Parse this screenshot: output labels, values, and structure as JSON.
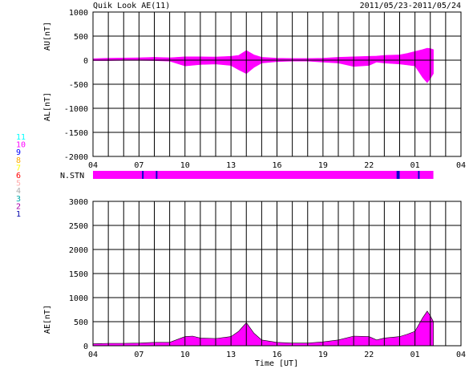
{
  "chart_data": [
    {
      "type": "area",
      "title": "Quik Look AE(11)",
      "date_range": "2011/05/23-2011/05/24",
      "ylabel_upper": "AU[nT]",
      "ylabel_lower": "AL[nT]",
      "ylim": [
        -2000,
        1000
      ],
      "yticks": [
        1000,
        500,
        0,
        -500,
        -1000,
        -1500,
        -2000
      ],
      "xlim": [
        4,
        28
      ],
      "xticks": [
        "04",
        "07",
        "10",
        "13",
        "16",
        "19",
        "22",
        "01",
        "04"
      ],
      "grid": true,
      "series": [
        {
          "name": "AU",
          "x": [
            4,
            5,
            6,
            7,
            8,
            9,
            10,
            11,
            12,
            13,
            13.5,
            14,
            14.5,
            15,
            16,
            17,
            18,
            19,
            20,
            21,
            22,
            22.5,
            23,
            24,
            24.5,
            25,
            25.5,
            25.8,
            26,
            26.2
          ],
          "values": [
            30,
            40,
            45,
            50,
            60,
            50,
            70,
            70,
            65,
            80,
            100,
            200,
            110,
            60,
            40,
            35,
            35,
            40,
            60,
            70,
            80,
            85,
            100,
            110,
            140,
            180,
            220,
            250,
            240,
            220
          ]
        },
        {
          "name": "AL",
          "x": [
            4,
            5,
            6,
            7,
            8,
            9,
            10,
            11,
            12,
            13,
            13.5,
            14,
            14.5,
            15,
            16,
            17,
            18,
            19,
            20,
            21,
            22,
            22.5,
            23,
            24,
            24.5,
            25,
            25.5,
            25.8,
            26,
            26.2
          ],
          "values": [
            -10,
            -10,
            -5,
            -5,
            -10,
            -20,
            -120,
            -90,
            -80,
            -110,
            -200,
            -280,
            -150,
            -60,
            -30,
            -20,
            -20,
            -40,
            -60,
            -130,
            -110,
            -40,
            -60,
            -80,
            -100,
            -120,
            -360,
            -470,
            -380,
            -280
          ]
        }
      ]
    },
    {
      "type": "bar",
      "label": "N.STN",
      "xlim": [
        4,
        28
      ],
      "color": "#ff00ff",
      "segments": [
        {
          "start": 4,
          "end": 26.2,
          "value": 10
        },
        {
          "start": 7.2,
          "end": 7.3,
          "value": 9
        },
        {
          "start": 8.1,
          "end": 8.2,
          "value": 9
        },
        {
          "start": 23.8,
          "end": 24.0,
          "value": 9
        },
        {
          "start": 25.2,
          "end": 25.3,
          "value": 9
        }
      ]
    },
    {
      "type": "area",
      "ylabel": "AE[nT]",
      "xlabel": "Time [UT]",
      "ylim": [
        0,
        3000
      ],
      "yticks": [
        3000,
        2500,
        2000,
        1500,
        1000,
        500,
        0
      ],
      "xlim": [
        4,
        28
      ],
      "xticks": [
        "04",
        "07",
        "10",
        "13",
        "16",
        "19",
        "22",
        "01",
        "04"
      ],
      "grid": true,
      "series": [
        {
          "name": "AE",
          "x": [
            4,
            5,
            6,
            7,
            8,
            9,
            10,
            10.5,
            11,
            12,
            13,
            13.5,
            14,
            14.5,
            15,
            16,
            17,
            18,
            19,
            20,
            21,
            22,
            22.5,
            23,
            24,
            24.5,
            25,
            25.5,
            25.8,
            26,
            26.2
          ],
          "values": [
            40,
            50,
            50,
            55,
            70,
            70,
            190,
            200,
            160,
            150,
            190,
            300,
            480,
            260,
            120,
            70,
            55,
            55,
            80,
            120,
            200,
            190,
            120,
            160,
            190,
            240,
            300,
            580,
            720,
            620,
            500
          ]
        }
      ]
    }
  ],
  "legend": {
    "items": [
      {
        "label": "11",
        "color": "#00ffff"
      },
      {
        "label": "10",
        "color": "#ff00ff"
      },
      {
        "label": "9",
        "color": "#0000ff"
      },
      {
        "label": "8",
        "color": "#ffaa00"
      },
      {
        "label": "7",
        "color": "#ffff00"
      },
      {
        "label": "6",
        "color": "#ff0000"
      },
      {
        "label": "5",
        "color": "#ffaaaa"
      },
      {
        "label": "4",
        "color": "#aaaaaa"
      },
      {
        "label": "3",
        "color": "#00aaaa"
      },
      {
        "label": "2",
        "color": "#aa00aa"
      },
      {
        "label": "1",
        "color": "#0000aa"
      }
    ]
  },
  "colors": {
    "fill": "#ff00ff",
    "segment_mark": "#0000cc",
    "grid": "#000000"
  }
}
